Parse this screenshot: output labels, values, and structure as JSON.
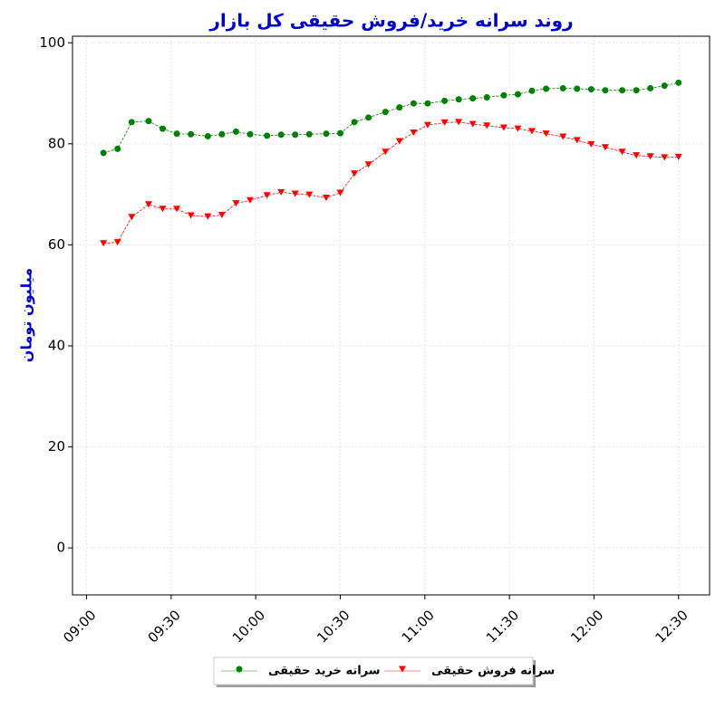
{
  "chart_data": {
    "type": "line",
    "title": "روند سرانه خرید/فروش حقیقی کل بازار",
    "y_label": "میلیون تومان",
    "x": [
      "09:06",
      "09:11",
      "09:16",
      "09:22",
      "09:27",
      "09:32",
      "09:37",
      "09:43",
      "09:48",
      "09:53",
      "09:58",
      "10:04",
      "10:09",
      "10:14",
      "10:19",
      "10:25",
      "10:30",
      "10:35",
      "10:40",
      "10:46",
      "10:51",
      "10:56",
      "11:01",
      "11:07",
      "11:12",
      "11:17",
      "11:22",
      "11:28",
      "11:33",
      "11:38",
      "11:43",
      "11:49",
      "11:54",
      "11:59",
      "12:04",
      "12:10",
      "12:15",
      "12:20",
      "12:25",
      "12:30"
    ],
    "series": [
      {
        "name": "سرانه خرید حقیقی",
        "color": "#008000",
        "marker": "circle",
        "values": [
          78.2,
          79,
          84.3,
          84.5,
          83,
          82,
          81.9,
          81.5,
          81.9,
          82.4,
          81.9,
          81.6,
          81.8,
          81.8,
          81.9,
          82,
          82.1,
          84.3,
          85.2,
          86.3,
          87.2,
          88,
          88,
          88.5,
          88.8,
          89,
          89.2,
          89.6,
          89.8,
          90.5,
          90.9,
          91,
          90.9,
          90.8,
          90.6,
          90.6,
          90.6,
          91,
          91.5,
          92.1
        ]
      },
      {
        "name": "سرانه فروش حقیقی",
        "color": "#ff0000",
        "marker": "triangle-down",
        "values": [
          60.3,
          60.5,
          65.5,
          68,
          67.1,
          67.1,
          65.8,
          65.6,
          65.9,
          68.2,
          68.8,
          69.8,
          70.4,
          70.1,
          69.9,
          69.3,
          70.3,
          74.1,
          75.9,
          78.4,
          80.5,
          82.2,
          83.7,
          84.2,
          84.3,
          83.9,
          83.6,
          83.2,
          83,
          82.5,
          82,
          81.4,
          80.7,
          79.9,
          79.3,
          78.4,
          77.7,
          77.5,
          77.3,
          77.4
        ]
      }
    ],
    "xlim": [
      "08:55",
      "12:41"
    ],
    "xticks": [
      "09:00",
      "09:30",
      "10:00",
      "10:30",
      "11:00",
      "11:30",
      "12:00",
      "12:30"
    ],
    "ylim": [
      -9.3,
      101.3
    ],
    "yticks": [
      0,
      20,
      40,
      60,
      80,
      100
    ],
    "grid": true,
    "legend": "below"
  }
}
